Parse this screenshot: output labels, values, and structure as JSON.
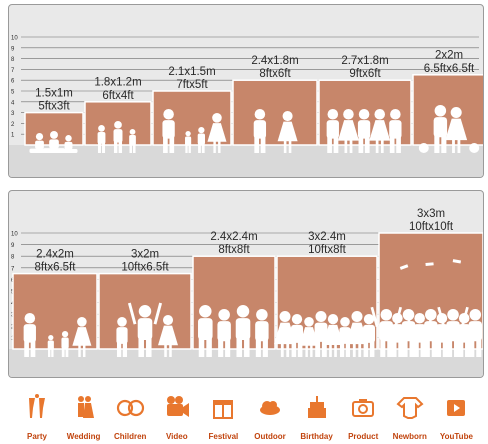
{
  "colors": {
    "panel_bg": "#e9e9e9",
    "backdrop": "#c7866a",
    "floor": "#d9d9d9",
    "line": "#6b6b6b",
    "text": "#2a2a2a",
    "icon": "#e8772e",
    "icon_label": "#c1440e"
  },
  "chart_data": [
    {
      "type": "bar",
      "scale_ticks": [
        1,
        2,
        3,
        4,
        5,
        6,
        7,
        8,
        9,
        10
      ],
      "scale_max": 10,
      "sizes": [
        {
          "metric": "1.5x1m",
          "imperial": "5ftx3ft",
          "height_ft": 3,
          "icon": "children-reading-silhouette"
        },
        {
          "metric": "1.8x1.2m",
          "imperial": "6ftx4ft",
          "height_ft": 4,
          "icon": "running-kids-silhouette"
        },
        {
          "metric": "2.1x1.5m",
          "imperial": "7ftx5ft",
          "height_ft": 5,
          "icon": "family-silhouette"
        },
        {
          "metric": "2.4x1.8m",
          "imperial": "8ftx6ft",
          "height_ft": 6,
          "icon": "wedding-couple-silhouette"
        },
        {
          "metric": "2.7x1.8m",
          "imperial": "9ftx6ft",
          "height_ft": 6,
          "icon": "bridesmaids-silhouette"
        },
        {
          "metric": "2x2m",
          "imperial": "6.5ftx6.5ft",
          "height_ft": 6.5,
          "icon": "couple-with-dog-silhouette"
        }
      ]
    },
    {
      "type": "bar",
      "scale_ticks": [
        1,
        2,
        3,
        4,
        5,
        6,
        7,
        8,
        9,
        10
      ],
      "scale_max": 10,
      "sizes": [
        {
          "metric": "2.4x2m",
          "imperial": "8ftx6.5ft",
          "height_ft": 6.5,
          "icon": "family-silhouette"
        },
        {
          "metric": "3x2m",
          "imperial": "10ftx6.5ft",
          "height_ft": 6.5,
          "icon": "family-lift-child-silhouette"
        },
        {
          "metric": "2.4x2.4m",
          "imperial": "8ftx8ft",
          "height_ft": 8,
          "icon": "group-silhouette"
        },
        {
          "metric": "3x2.4m",
          "imperial": "10ftx8ft",
          "height_ft": 8,
          "icon": "crowd-silhouette"
        },
        {
          "metric": "3x3m",
          "imperial": "10ftx10ft",
          "height_ft": 10,
          "icon": "graduation-crowd-silhouette"
        }
      ]
    }
  ],
  "categories": [
    {
      "label": "Party",
      "icon": "champagne-glasses-icon"
    },
    {
      "label": "Wedding",
      "icon": "bride-groom-icon"
    },
    {
      "label": "Children",
      "icon": "baby-faces-icon"
    },
    {
      "label": "Video",
      "icon": "video-camera-icon"
    },
    {
      "label": "Festival",
      "icon": "gift-box-icon"
    },
    {
      "label": "Outdoor",
      "icon": "cloud-icon"
    },
    {
      "label": "Birthday",
      "icon": "birthday-cake-icon"
    },
    {
      "label": "Product",
      "icon": "camera-icon"
    },
    {
      "label": "Newborn",
      "icon": "baby-onesie-icon"
    },
    {
      "label": "YouTube",
      "icon": "play-button-icon"
    }
  ]
}
